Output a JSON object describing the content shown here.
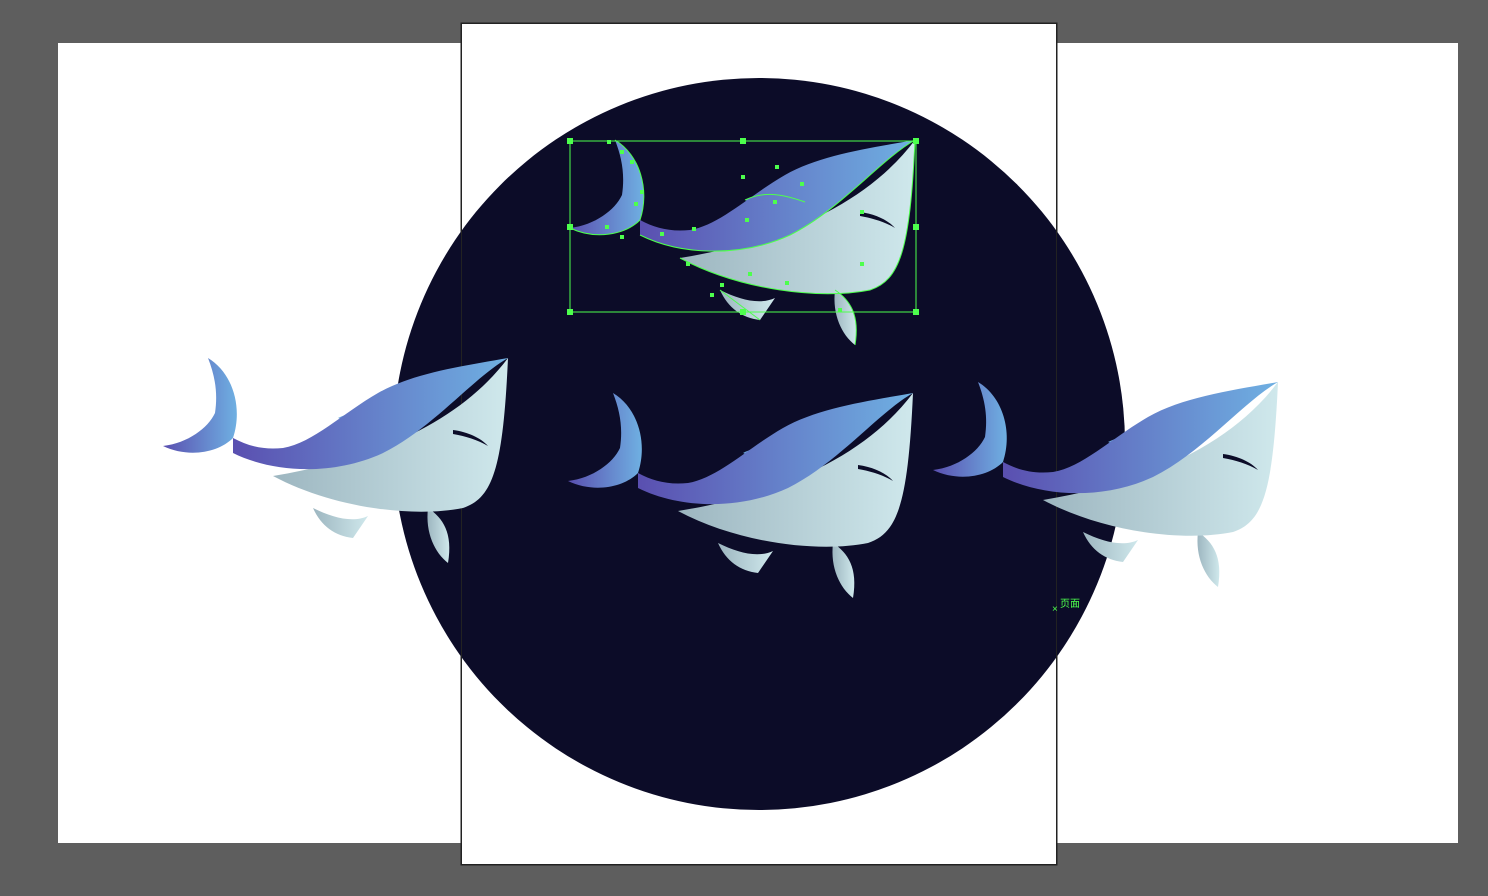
{
  "app": {
    "name": "vector-editor-canvas"
  },
  "canvas": {
    "background_color": "#5e5e5e",
    "artboard_color": "#ffffff",
    "circle_color": "#0c0c28",
    "selection_color": "#4dff4d",
    "page_label": "页面",
    "page_marker": "×"
  },
  "artwork": {
    "shark_icon": "shark-icon",
    "fin_gradient": [
      "#5a4fb0",
      "#6ea6e0"
    ],
    "belly_gradient": [
      "#9fb9c3",
      "#c9e6ea"
    ]
  }
}
